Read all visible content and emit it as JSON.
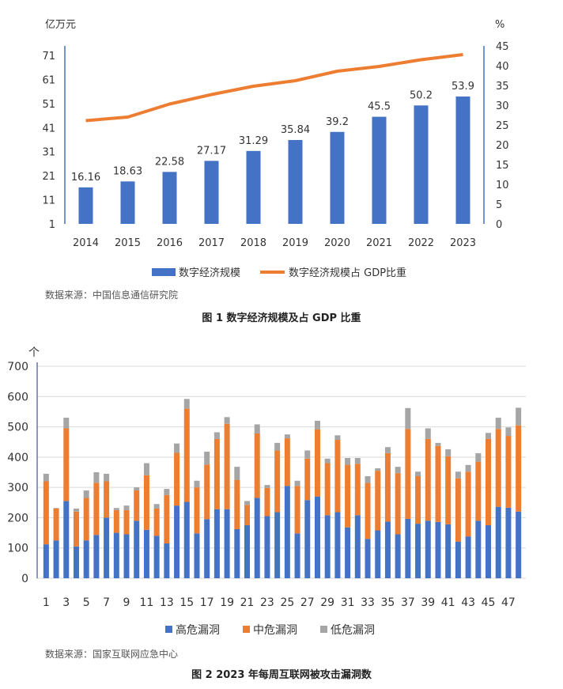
{
  "chart_data": [
    {
      "type": "bar+line",
      "categories": [
        "2014",
        "2015",
        "2016",
        "2017",
        "2018",
        "2019",
        "2020",
        "2021",
        "2022",
        "2023"
      ],
      "series": [
        {
          "name": "数字经济规模",
          "type": "bar",
          "axis": "left",
          "values": [
            16.16,
            18.63,
            22.58,
            27.17,
            31.29,
            35.84,
            39.2,
            45.5,
            50.2,
            53.9
          ],
          "data_labels": [
            "16.16",
            "18.63",
            "22.58",
            "27.17",
            "31.29",
            "35.84",
            "39.2",
            "45.5",
            "50.2",
            "53.9"
          ]
        },
        {
          "name": "数字经济规模占 GDP比重",
          "type": "line",
          "axis": "right",
          "values": [
            26.1,
            27.0,
            30.3,
            32.7,
            34.8,
            36.2,
            38.6,
            39.8,
            41.5,
            42.8
          ]
        }
      ],
      "yunit_left": "亿万元",
      "yunit_right": "%",
      "ylim_left": [
        1,
        71
      ],
      "yticks_left": [
        1,
        11,
        21,
        31,
        41,
        51,
        61,
        71
      ],
      "ylim_right": [
        0,
        45
      ],
      "yticks_right": [
        0,
        5,
        10,
        15,
        20,
        25,
        30,
        35,
        40,
        45
      ],
      "legend": "bottom",
      "grid": false,
      "colors": {
        "bar": "#4472c4",
        "line": "#ed7d31"
      },
      "source": "数据来源：中国信息通信研究院",
      "caption": "图 1  数字经济规模及占 GDP 比重"
    },
    {
      "type": "stacked-bar",
      "categories": [
        "1",
        "2",
        "3",
        "4",
        "5",
        "6",
        "7",
        "8",
        "9",
        "10",
        "11",
        "12",
        "13",
        "14",
        "15",
        "16",
        "17",
        "18",
        "19",
        "20",
        "21",
        "22",
        "23",
        "24",
        "25",
        "26",
        "27",
        "28",
        "29",
        "30",
        "31",
        "32",
        "33",
        "34",
        "35",
        "36",
        "37",
        "38",
        "39",
        "40",
        "41",
        "42",
        "43",
        "44",
        "45",
        "46",
        "47",
        "48"
      ],
      "xticks": [
        "1",
        "3",
        "5",
        "7",
        "9",
        "11",
        "13",
        "15",
        "17",
        "19",
        "21",
        "23",
        "25",
        "27",
        "29",
        "31",
        "33",
        "35",
        "37",
        "39",
        "41",
        "43",
        "45",
        "47"
      ],
      "series": [
        {
          "name": "高危漏洞",
          "color": "#4472c4",
          "values": [
            112,
            125,
            255,
            105,
            125,
            143,
            200,
            150,
            145,
            190,
            160,
            140,
            115,
            240,
            252,
            148,
            195,
            228,
            228,
            162,
            175,
            265,
            205,
            218,
            305,
            148,
            258,
            270,
            208,
            218,
            168,
            208,
            130,
            158,
            187,
            145,
            196,
            180,
            190,
            186,
            178,
            121,
            138,
            190,
            175,
            236,
            233,
            220
          ]
        },
        {
          "name": "中危漏洞",
          "color": "#ed7d31",
          "values": [
            208,
            105,
            240,
            115,
            140,
            172,
            120,
            75,
            80,
            100,
            180,
            90,
            160,
            175,
            308,
            152,
            180,
            232,
            282,
            163,
            67,
            213,
            93,
            204,
            157,
            157,
            137,
            222,
            172,
            239,
            207,
            170,
            185,
            197,
            226,
            202,
            297,
            157,
            270,
            251,
            225,
            209,
            214,
            195,
            285,
            257,
            237,
            285
          ]
        },
        {
          "name": "低危漏洞",
          "color": "#a5a5a5",
          "values": [
            25,
            2,
            35,
            10,
            25,
            35,
            25,
            7,
            15,
            10,
            40,
            15,
            20,
            30,
            32,
            22,
            43,
            22,
            22,
            43,
            13,
            30,
            10,
            25,
            13,
            17,
            27,
            28,
            15,
            15,
            22,
            19,
            22,
            8,
            20,
            21,
            69,
            15,
            35,
            10,
            23,
            22,
            22,
            28,
            20,
            37,
            28,
            58
          ]
        }
      ],
      "yunit": "个",
      "ylim": [
        0,
        700
      ],
      "yticks": [
        0,
        100,
        200,
        300,
        400,
        500,
        600,
        700
      ],
      "grid": true,
      "legend": "bottom",
      "source": "数据来源：国家互联网应急中心",
      "caption": "图 2  2023 年每周互联网被攻击漏洞数"
    }
  ]
}
